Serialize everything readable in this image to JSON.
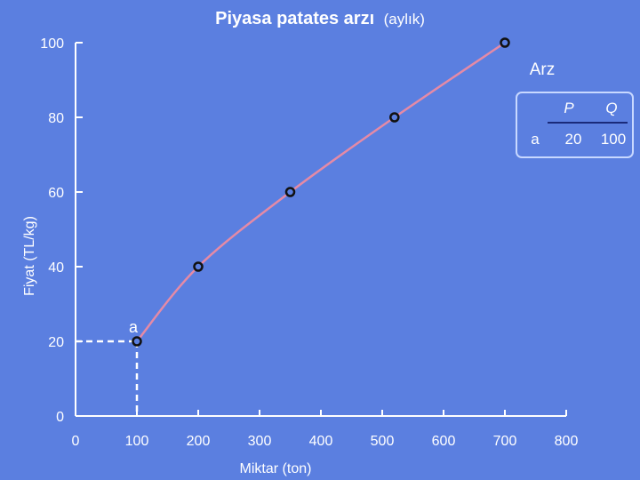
{
  "chart_data": {
    "type": "line",
    "title": "Piyasa patates arzı",
    "subtitle": "(aylık)",
    "xlabel": "Miktar (ton)",
    "ylabel": "Fiyat (TL/kg)",
    "xlim": [
      0,
      800
    ],
    "ylim": [
      0,
      100
    ],
    "x_ticks": [
      0,
      100,
      200,
      300,
      400,
      500,
      600,
      700,
      800
    ],
    "y_ticks": [
      0,
      20,
      40,
      60,
      80,
      100
    ],
    "grid": false,
    "series": [
      {
        "name": "Arz",
        "x": [
          100,
          200,
          350,
          520,
          700
        ],
        "y": [
          20,
          40,
          60,
          80,
          100
        ]
      }
    ],
    "annotations": [
      {
        "label": "a",
        "x": 100,
        "y": 20,
        "dashed_guides": true
      }
    ],
    "legend_table": {
      "headers": [
        "P",
        "Q"
      ],
      "rows": [
        {
          "label": "a",
          "values": [
            "20",
            "100"
          ]
        }
      ]
    },
    "colors": {
      "background": "#5b7fe0",
      "axis": "#ffffff",
      "line": "#e58aa6",
      "marker_fill": "#5b7fe0",
      "marker_stroke": "#111111",
      "text": "#ffffff",
      "table_border": "#c8d8ff"
    }
  }
}
